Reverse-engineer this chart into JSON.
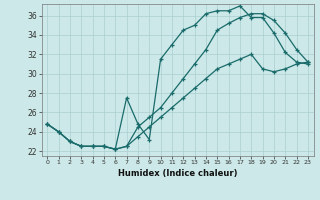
{
  "xlabel": "Humidex (Indice chaleur)",
  "background_color": "#cce8e8",
  "line_color": "#1a6b6b",
  "grid_color": "#aacfcf",
  "xlim": [
    -0.5,
    23.5
  ],
  "ylim": [
    21.5,
    37.2
  ],
  "xticks": [
    0,
    1,
    2,
    3,
    4,
    5,
    6,
    7,
    8,
    9,
    10,
    11,
    12,
    13,
    14,
    15,
    16,
    17,
    18,
    19,
    20,
    21,
    22,
    23
  ],
  "yticks": [
    22,
    24,
    26,
    28,
    30,
    32,
    34,
    36
  ],
  "line1_x": [
    0,
    1,
    2,
    3,
    4,
    5,
    6,
    7,
    8,
    9,
    10,
    11,
    12,
    13,
    14,
    15,
    16,
    17,
    18,
    19,
    20,
    21,
    22,
    23
  ],
  "line1_y": [
    24.8,
    24.0,
    23.0,
    22.5,
    22.5,
    22.5,
    22.2,
    27.5,
    24.8,
    23.2,
    31.5,
    33.0,
    34.5,
    35.0,
    36.2,
    36.5,
    36.5,
    37.0,
    35.8,
    35.8,
    34.2,
    32.2,
    31.2,
    31.0
  ],
  "line2_x": [
    0,
    1,
    2,
    3,
    4,
    5,
    6,
    7,
    8,
    9,
    10,
    11,
    12,
    13,
    14,
    15,
    16,
    17,
    18,
    19,
    20,
    21,
    22,
    23
  ],
  "line2_y": [
    24.8,
    24.0,
    23.0,
    22.5,
    22.5,
    22.5,
    22.2,
    22.5,
    24.5,
    25.5,
    26.5,
    28.0,
    29.5,
    31.0,
    32.5,
    34.5,
    35.2,
    35.8,
    36.2,
    36.2,
    35.5,
    34.2,
    32.5,
    31.2
  ],
  "line3_x": [
    0,
    1,
    2,
    3,
    4,
    5,
    6,
    7,
    8,
    9,
    10,
    11,
    12,
    13,
    14,
    15,
    16,
    17,
    18,
    19,
    20,
    21,
    22,
    23
  ],
  "line3_y": [
    24.8,
    24.0,
    23.0,
    22.5,
    22.5,
    22.5,
    22.2,
    22.5,
    23.5,
    24.5,
    25.5,
    26.5,
    27.5,
    28.5,
    29.5,
    30.5,
    31.0,
    31.5,
    32.0,
    30.5,
    30.2,
    30.5,
    31.0,
    31.2
  ]
}
